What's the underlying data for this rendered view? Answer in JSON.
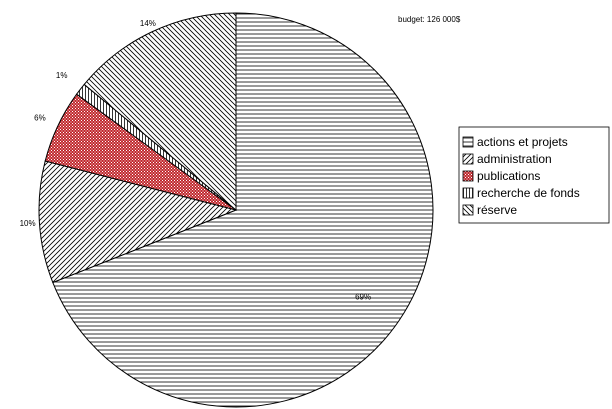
{
  "chart_data": {
    "type": "pie",
    "title": "",
    "annotation": "budget: 126 000$",
    "slices": [
      {
        "label": "actions et projets",
        "value": 69,
        "pct_label": "69%",
        "pattern": "hlines",
        "color": "#ffffff"
      },
      {
        "label": "administration",
        "value": 10,
        "pct_label": "10%",
        "pattern": "diag-up",
        "color": "#ffffff"
      },
      {
        "label": "publications",
        "value": 6,
        "pct_label": "6%",
        "pattern": "dots",
        "color": "#c0282d"
      },
      {
        "label": "recherche de fonds",
        "value": 1,
        "pct_label": "1%",
        "pattern": "vlines",
        "color": "#ffffff"
      },
      {
        "label": "réserve",
        "value": 14,
        "pct_label": "14%",
        "pattern": "diag-down",
        "color": "#ffffff"
      }
    ],
    "legend_position": "right"
  }
}
